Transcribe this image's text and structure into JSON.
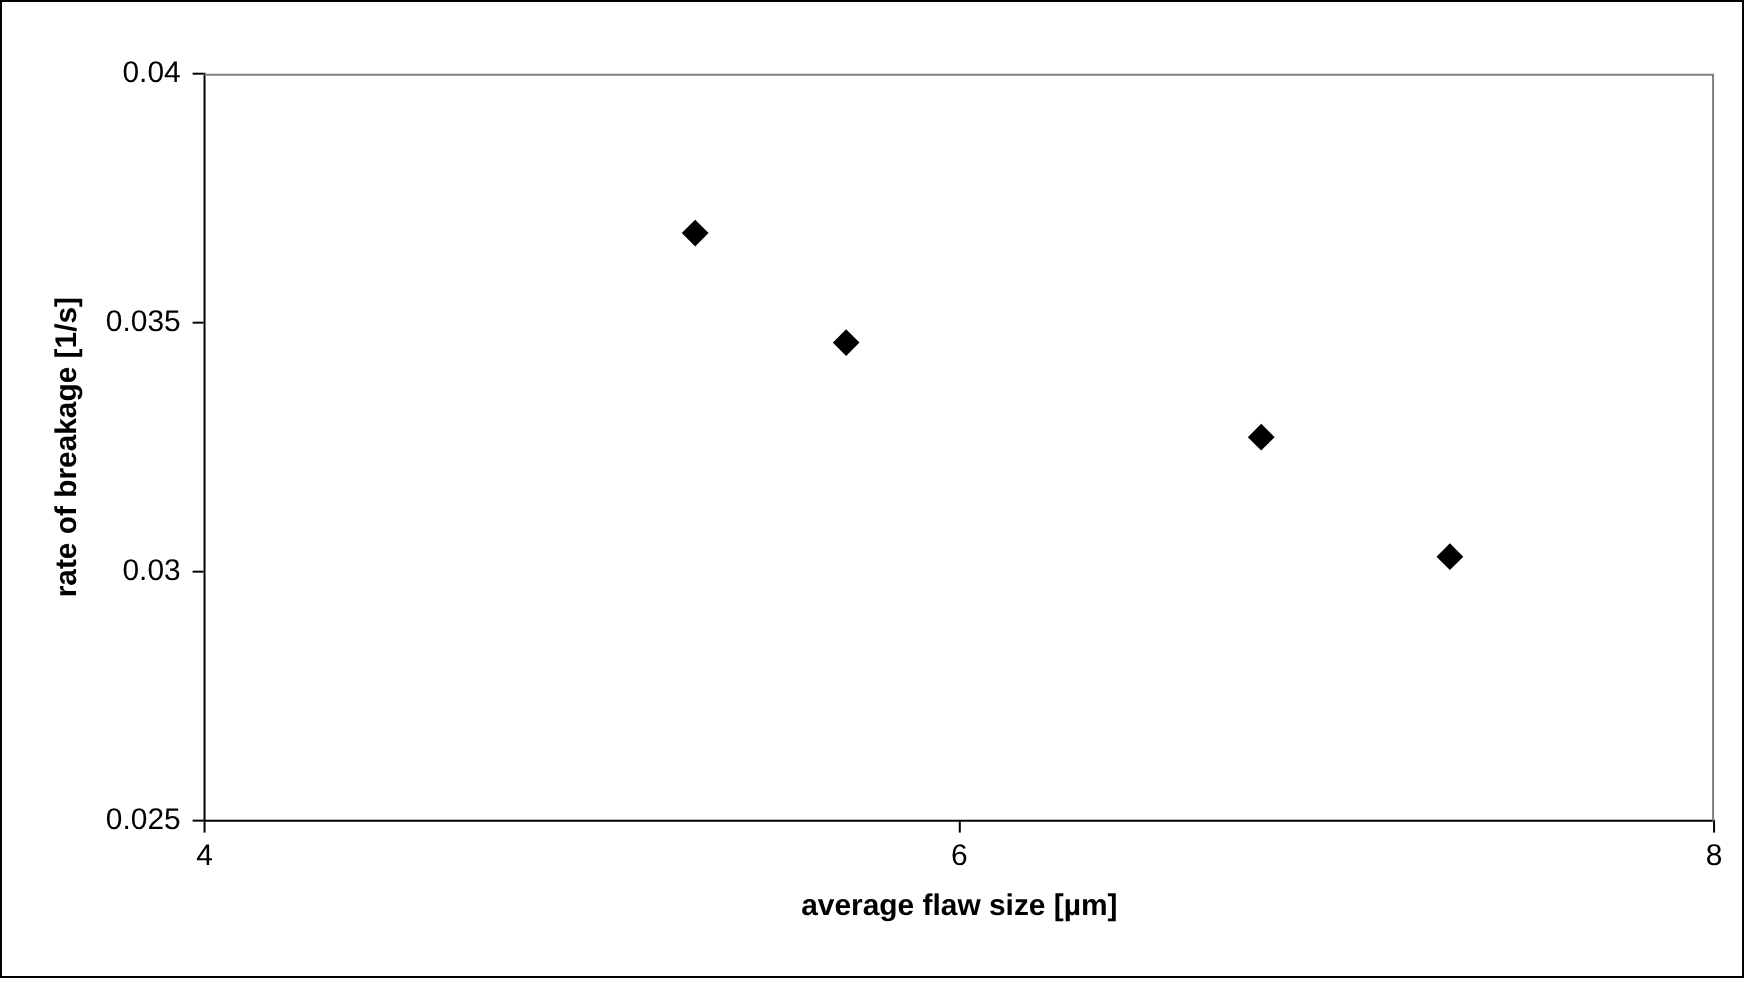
{
  "chart_data": {
    "type": "scatter",
    "xlabel": "average flaw size [µm]",
    "ylabel": "rate of breakage [1/s]",
    "x": [
      5.3,
      5.7,
      6.8,
      7.3
    ],
    "series": [
      {
        "color": "#000000",
        "values": [
          0.0368,
          0.0346,
          0.0327,
          0.0303
        ]
      }
    ],
    "xlim": [
      4,
      8
    ],
    "xticks": [
      4,
      6,
      8
    ],
    "ylim": [
      0.025,
      0.04
    ],
    "yticks": [
      0.025,
      0.03,
      0.035,
      0.04
    ],
    "grid": false,
    "legend": false,
    "marker": "diamond"
  }
}
